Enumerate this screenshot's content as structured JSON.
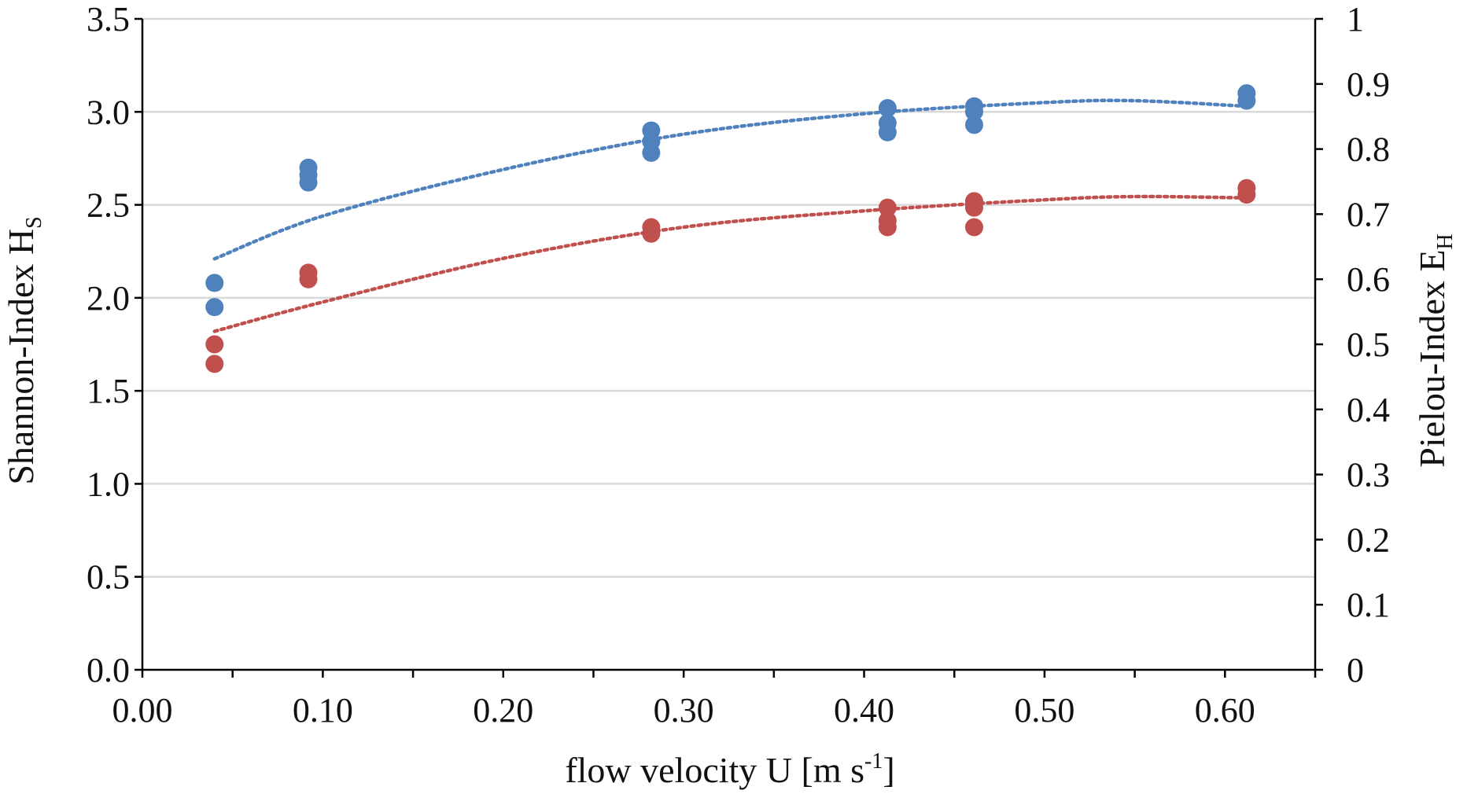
{
  "chart_data": {
    "type": "scatter",
    "title": "",
    "xlabel": {
      "text": "flow velocity U [m s",
      "superscript": "-1",
      "suffix": "]"
    },
    "ylabel_left": {
      "text": "Shannon-Index H",
      "subscript": "S"
    },
    "ylabel_right": {
      "text": "Pielou-Index E",
      "subscript": "H"
    },
    "xlim": [
      0,
      0.65
    ],
    "ylim_left": [
      0,
      3.5
    ],
    "ylim_right": [
      0,
      1
    ],
    "x_ticks": [
      "0.00",
      "0.10",
      "0.20",
      "0.30",
      "0.40",
      "0.50",
      "0.60"
    ],
    "y_left_ticks": [
      "0.0",
      "0.5",
      "1.0",
      "1.5",
      "2.0",
      "2.5",
      "3.0",
      "3.5"
    ],
    "y_right_ticks": [
      "0",
      "0.1",
      "0.2",
      "0.3",
      "0.4",
      "0.5",
      "0.6",
      "0.7",
      "0.8",
      "0.9",
      "1"
    ],
    "grid": "horizontal",
    "series": [
      {
        "name": "Shannon-Index",
        "axis": "left",
        "color": "#4F81BD",
        "points": [
          {
            "x": 0.04,
            "y": 2.08
          },
          {
            "x": 0.04,
            "y": 1.95
          },
          {
            "x": 0.092,
            "y": 2.7
          },
          {
            "x": 0.092,
            "y": 2.66
          },
          {
            "x": 0.092,
            "y": 2.62
          },
          {
            "x": 0.282,
            "y": 2.9
          },
          {
            "x": 0.282,
            "y": 2.84
          },
          {
            "x": 0.282,
            "y": 2.78
          },
          {
            "x": 0.413,
            "y": 3.02
          },
          {
            "x": 0.413,
            "y": 2.94
          },
          {
            "x": 0.413,
            "y": 2.89
          },
          {
            "x": 0.461,
            "y": 3.03
          },
          {
            "x": 0.461,
            "y": 3.0
          },
          {
            "x": 0.461,
            "y": 2.93
          },
          {
            "x": 0.612,
            "y": 3.1
          },
          {
            "x": 0.612,
            "y": 3.06
          }
        ],
        "trend": [
          {
            "x": 0.04,
            "y": 2.21
          },
          {
            "x": 0.1,
            "y": 2.44
          },
          {
            "x": 0.2,
            "y": 2.69
          },
          {
            "x": 0.3,
            "y": 2.88
          },
          {
            "x": 0.4,
            "y": 2.99
          },
          {
            "x": 0.5,
            "y": 3.05
          },
          {
            "x": 0.55,
            "y": 3.06
          },
          {
            "x": 0.612,
            "y": 3.03
          }
        ]
      },
      {
        "name": "Pielou-Index",
        "axis": "right",
        "color": "#C0504D",
        "points": [
          {
            "x": 0.04,
            "y": 0.5
          },
          {
            "x": 0.04,
            "y": 0.47
          },
          {
            "x": 0.092,
            "y": 0.61
          },
          {
            "x": 0.092,
            "y": 0.6
          },
          {
            "x": 0.282,
            "y": 0.68
          },
          {
            "x": 0.282,
            "y": 0.67
          },
          {
            "x": 0.413,
            "y": 0.71
          },
          {
            "x": 0.413,
            "y": 0.69
          },
          {
            "x": 0.413,
            "y": 0.68
          },
          {
            "x": 0.461,
            "y": 0.72
          },
          {
            "x": 0.461,
            "y": 0.71
          },
          {
            "x": 0.461,
            "y": 0.68
          },
          {
            "x": 0.612,
            "y": 0.74
          },
          {
            "x": 0.612,
            "y": 0.73
          }
        ],
        "trend": [
          {
            "x": 0.04,
            "y": 0.52
          },
          {
            "x": 0.1,
            "y": 0.565
          },
          {
            "x": 0.2,
            "y": 0.632
          },
          {
            "x": 0.3,
            "y": 0.68
          },
          {
            "x": 0.4,
            "y": 0.705
          },
          {
            "x": 0.5,
            "y": 0.722
          },
          {
            "x": 0.55,
            "y": 0.727
          },
          {
            "x": 0.612,
            "y": 0.725
          }
        ]
      }
    ]
  }
}
